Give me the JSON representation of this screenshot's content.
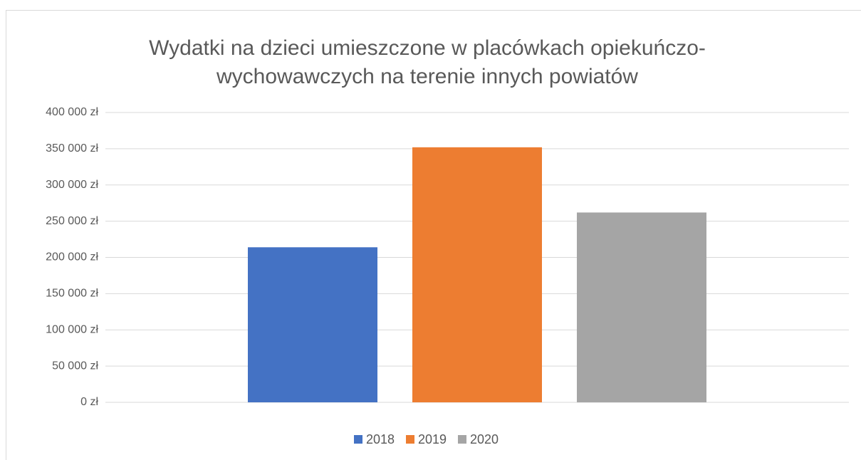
{
  "chart_data": {
    "type": "bar",
    "title": "Wydatki na dzieci umieszczone w placówkach opiekuńczo-wychowawczych na terenie innych powiatów",
    "categories": [
      null
    ],
    "series": [
      {
        "name": "2018",
        "color": "#4472c4",
        "values": [
          214000
        ]
      },
      {
        "name": "2019",
        "color": "#ed7d31",
        "values": [
          352000
        ]
      },
      {
        "name": "2020",
        "color": "#a5a5a5",
        "values": [
          262000
        ]
      }
    ],
    "ylim": [
      0,
      400000
    ],
    "yticks": [
      {
        "value": 0,
        "label": "0 zł"
      },
      {
        "value": 50000,
        "label": "50 000 zł"
      },
      {
        "value": 100000,
        "label": "100 000 zł"
      },
      {
        "value": 150000,
        "label": "150 000 zł"
      },
      {
        "value": 200000,
        "label": "200 000 zł"
      },
      {
        "value": 250000,
        "label": "250 000 zł"
      },
      {
        "value": 300000,
        "label": "300 000 zł"
      },
      {
        "value": 350000,
        "label": "350 000 zł"
      },
      {
        "value": 400000,
        "label": "400 000 zł"
      }
    ],
    "grid": true,
    "legend": "bottom"
  }
}
